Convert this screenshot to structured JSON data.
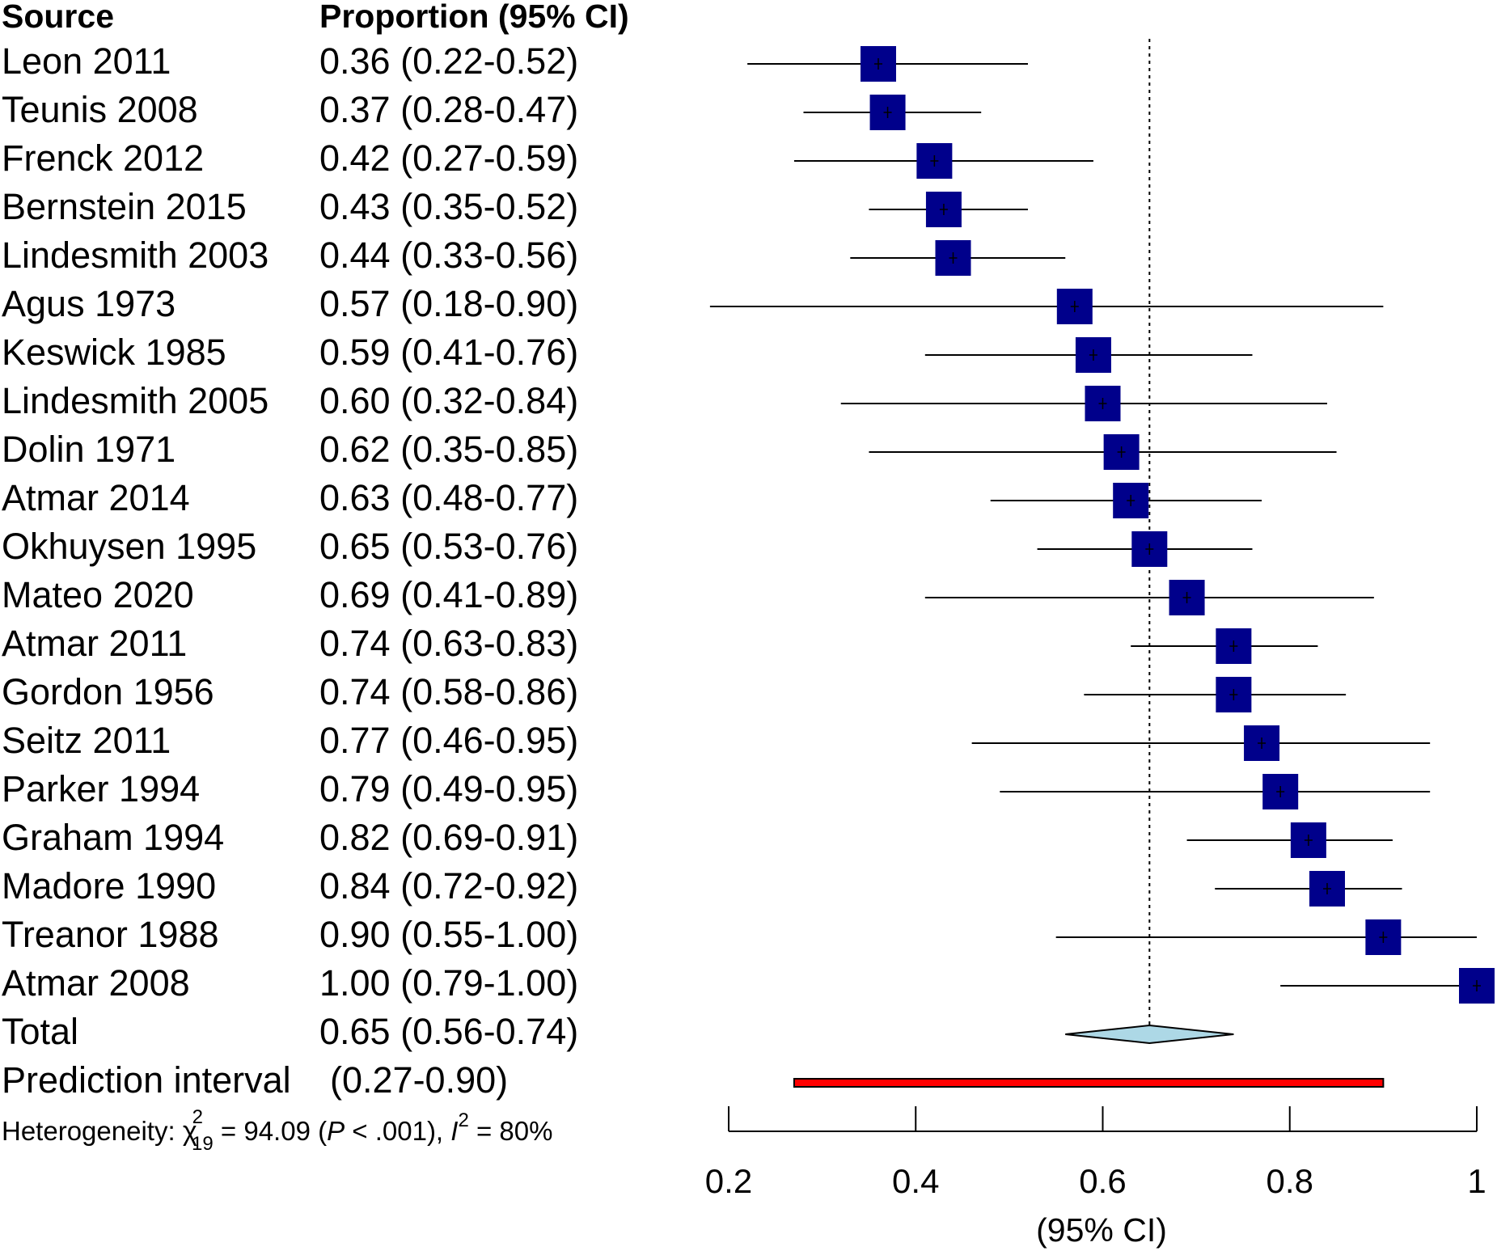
{
  "chart_data": {
    "type": "forest",
    "headers": {
      "source": "Source",
      "estimate": "Proportion (95% CI)"
    },
    "studies": [
      {
        "name": "Leon 2011",
        "label": "0.36 (0.22-0.52)",
        "est": 0.36,
        "lo": 0.22,
        "hi": 0.52
      },
      {
        "name": "Teunis 2008",
        "label": "0.37 (0.28-0.47)",
        "est": 0.37,
        "lo": 0.28,
        "hi": 0.47
      },
      {
        "name": "Frenck 2012",
        "label": "0.42 (0.27-0.59)",
        "est": 0.42,
        "lo": 0.27,
        "hi": 0.59
      },
      {
        "name": "Bernstein 2015",
        "label": "0.43 (0.35-0.52)",
        "est": 0.43,
        "lo": 0.35,
        "hi": 0.52
      },
      {
        "name": "Lindesmith 2003",
        "label": "0.44 (0.33-0.56)",
        "est": 0.44,
        "lo": 0.33,
        "hi": 0.56
      },
      {
        "name": "Agus 1973",
        "label": "0.57 (0.18-0.90)",
        "est": 0.57,
        "lo": 0.18,
        "hi": 0.9
      },
      {
        "name": "Keswick 1985",
        "label": "0.59 (0.41-0.76)",
        "est": 0.59,
        "lo": 0.41,
        "hi": 0.76
      },
      {
        "name": "Lindesmith 2005",
        "label": "0.60 (0.32-0.84)",
        "est": 0.6,
        "lo": 0.32,
        "hi": 0.84
      },
      {
        "name": "Dolin 1971",
        "label": "0.62 (0.35-0.85)",
        "est": 0.62,
        "lo": 0.35,
        "hi": 0.85
      },
      {
        "name": "Atmar 2014",
        "label": "0.63 (0.48-0.77)",
        "est": 0.63,
        "lo": 0.48,
        "hi": 0.77
      },
      {
        "name": "Okhuysen 1995",
        "label": "0.65 (0.53-0.76)",
        "est": 0.65,
        "lo": 0.53,
        "hi": 0.76
      },
      {
        "name": "Mateo 2020",
        "label": "0.69 (0.41-0.89)",
        "est": 0.69,
        "lo": 0.41,
        "hi": 0.89
      },
      {
        "name": "Atmar 2011",
        "label": "0.74 (0.63-0.83)",
        "est": 0.74,
        "lo": 0.63,
        "hi": 0.83
      },
      {
        "name": "Gordon 1956",
        "label": "0.74 (0.58-0.86)",
        "est": 0.74,
        "lo": 0.58,
        "hi": 0.86
      },
      {
        "name": "Seitz 2011",
        "label": "0.77 (0.46-0.95)",
        "est": 0.77,
        "lo": 0.46,
        "hi": 0.95
      },
      {
        "name": "Parker 1994",
        "label": "0.79 (0.49-0.95)",
        "est": 0.79,
        "lo": 0.49,
        "hi": 0.95
      },
      {
        "name": "Graham 1994",
        "label": "0.82 (0.69-0.91)",
        "est": 0.82,
        "lo": 0.69,
        "hi": 0.91
      },
      {
        "name": "Madore 1990",
        "label": "0.84 (0.72-0.92)",
        "est": 0.84,
        "lo": 0.72,
        "hi": 0.92
      },
      {
        "name": "Treanor 1988",
        "label": "0.90 (0.55-1.00)",
        "est": 0.9,
        "lo": 0.55,
        "hi": 1.0
      },
      {
        "name": "Atmar 2008",
        "label": "1.00 (0.79-1.00)",
        "est": 1.0,
        "lo": 0.79,
        "hi": 1.0
      }
    ],
    "total": {
      "name": "Total",
      "label": "0.65 (0.56-0.74)",
      "est": 0.65,
      "lo": 0.56,
      "hi": 0.74
    },
    "prediction_interval": {
      "name": "Prediction interval",
      "label": "(0.27-0.90)",
      "lo": 0.27,
      "hi": 0.9
    },
    "heterogeneity": {
      "prefix": "Heterogeneity: ",
      "chi": "χ",
      "chi_sup": "2",
      "chi_sub": "19",
      "chi_value": " = 94.09 (",
      "p": "P",
      "p_value": " < .001), ",
      "i": "I",
      "i_sup": "2",
      "i_value": " = 80%"
    },
    "reference_line": 0.65,
    "x_ticks": [
      0.2,
      0.4,
      0.6,
      0.8,
      1.0
    ],
    "x_tick_labels": [
      "0.2",
      "0.4",
      "0.6",
      "0.8",
      "1"
    ],
    "xlim": [
      0.2,
      1.0
    ],
    "xlabel": "(95% CI)",
    "colors": {
      "study_box": "#00008b",
      "diamond_fill": "#add8e6",
      "prediction_bar": "#ff0000",
      "lines": "#000000"
    }
  }
}
